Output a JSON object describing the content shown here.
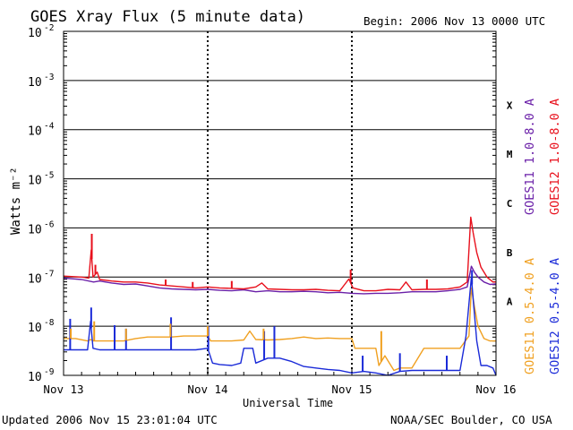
{
  "header": {
    "title": "GOES Xray Flux (5 minute data)",
    "begin": "Begin:  2006 Nov 13 0000 UTC"
  },
  "footer": {
    "updated": "Updated 2006 Nov 15 23:01:04 UTC",
    "credit": "NOAA/SEC Boulder, CO USA"
  },
  "chart_data": {
    "type": "line",
    "title": "GOES Xray Flux (5 minute data)",
    "xlabel": "Universal Time",
    "ylabel": "Watts m⁻²",
    "yscale": "log",
    "ylim": [
      1e-09,
      0.01
    ],
    "xlim": [
      0,
      72
    ],
    "x_units": "hours since 2006 Nov 13 0000 UTC",
    "x_ticks": [
      {
        "x": 0,
        "label": "Nov 13"
      },
      {
        "x": 24,
        "label": "Nov 14"
      },
      {
        "x": 48,
        "label": "Nov 15"
      },
      {
        "x": 72,
        "label": "Nov 16"
      }
    ],
    "y_ticks": [
      {
        "exp": -2,
        "base": "10",
        "power": "-2"
      },
      {
        "exp": -3,
        "base": "10",
        "power": "-3"
      },
      {
        "exp": -4,
        "base": "10",
        "power": "-4"
      },
      {
        "exp": -5,
        "base": "10",
        "power": "-5"
      },
      {
        "exp": -6,
        "base": "10",
        "power": "-6"
      },
      {
        "exp": -7,
        "base": "10",
        "power": "-7"
      },
      {
        "exp": -8,
        "base": "10",
        "power": "-8"
      },
      {
        "exp": -9,
        "base": "10",
        "power": "-9"
      }
    ],
    "flare_classes": [
      {
        "label": "X",
        "center_exp": -3.5
      },
      {
        "label": "M",
        "center_exp": -4.5
      },
      {
        "label": "C",
        "center_exp": -5.5
      },
      {
        "label": "B",
        "center_exp": -6.5
      },
      {
        "label": "A",
        "center_exp": -7.5
      }
    ],
    "grid": true,
    "legend_position": "right (rotated)",
    "series": [
      {
        "name": "GOES11 1.0-8.0 A",
        "color": "#6a1fa8",
        "points": [
          [
            0,
            -7.02
          ],
          [
            3,
            -7.05
          ],
          [
            5,
            -7.1
          ],
          [
            6,
            -7.08
          ],
          [
            8,
            -7.12
          ],
          [
            10,
            -7.15
          ],
          [
            12,
            -7.14
          ],
          [
            14,
            -7.18
          ],
          [
            16,
            -7.22
          ],
          [
            18,
            -7.24
          ],
          [
            20,
            -7.25
          ],
          [
            22,
            -7.26
          ],
          [
            24,
            -7.25
          ],
          [
            26,
            -7.27
          ],
          [
            28,
            -7.28
          ],
          [
            30,
            -7.26
          ],
          [
            32,
            -7.3
          ],
          [
            34,
            -7.28
          ],
          [
            36,
            -7.3
          ],
          [
            38,
            -7.3
          ],
          [
            40,
            -7.29
          ],
          [
            42,
            -7.3
          ],
          [
            44,
            -7.32
          ],
          [
            46,
            -7.31
          ],
          [
            48,
            -7.33
          ],
          [
            50,
            -7.34
          ],
          [
            52,
            -7.33
          ],
          [
            54,
            -7.33
          ],
          [
            56,
            -7.32
          ],
          [
            58,
            -7.3
          ],
          [
            60,
            -7.3
          ],
          [
            62,
            -7.3
          ],
          [
            64,
            -7.28
          ],
          [
            66,
            -7.25
          ],
          [
            67.2,
            -7.2
          ],
          [
            67.9,
            -6.78
          ],
          [
            68.4,
            -6.9
          ],
          [
            69,
            -7.0
          ],
          [
            70,
            -7.1
          ],
          [
            71,
            -7.15
          ],
          [
            72,
            -7.14
          ]
        ]
      },
      {
        "name": "GOES12 1.0-8.0 A",
        "color": "#e8101c",
        "points": [
          [
            0,
            -6.98
          ],
          [
            3,
            -7.0
          ],
          [
            4.2,
            -7.02
          ],
          [
            4.6,
            -6.45
          ],
          [
            4.9,
            -7.0
          ],
          [
            5.6,
            -6.9
          ],
          [
            6,
            -7.05
          ],
          [
            8,
            -7.08
          ],
          [
            10,
            -7.1
          ],
          [
            12,
            -7.1
          ],
          [
            14,
            -7.12
          ],
          [
            16,
            -7.16
          ],
          [
            18,
            -7.18
          ],
          [
            20,
            -7.2
          ],
          [
            22,
            -7.22
          ],
          [
            24,
            -7.2
          ],
          [
            26,
            -7.22
          ],
          [
            28,
            -7.23
          ],
          [
            30,
            -7.24
          ],
          [
            32,
            -7.2
          ],
          [
            33,
            -7.12
          ],
          [
            34,
            -7.24
          ],
          [
            36,
            -7.25
          ],
          [
            38,
            -7.26
          ],
          [
            40,
            -7.26
          ],
          [
            42,
            -7.25
          ],
          [
            44,
            -7.27
          ],
          [
            46,
            -7.28
          ],
          [
            47.5,
            -7.04
          ],
          [
            48.2,
            -7.22
          ],
          [
            50,
            -7.28
          ],
          [
            52,
            -7.28
          ],
          [
            54,
            -7.25
          ],
          [
            56,
            -7.26
          ],
          [
            57,
            -7.1
          ],
          [
            58,
            -7.26
          ],
          [
            60,
            -7.25
          ],
          [
            62,
            -7.25
          ],
          [
            64,
            -7.24
          ],
          [
            66,
            -7.2
          ],
          [
            67.2,
            -7.1
          ],
          [
            67.8,
            -5.78
          ],
          [
            68.2,
            -6.1
          ],
          [
            68.8,
            -6.5
          ],
          [
            69.5,
            -6.8
          ],
          [
            70.5,
            -7.0
          ],
          [
            71.5,
            -7.1
          ],
          [
            72,
            -7.1
          ]
        ]
      },
      {
        "name": "GOES11 0.5-4.0 A",
        "color": "#f0a020",
        "points": [
          [
            0,
            -8.25
          ],
          [
            2,
            -8.25
          ],
          [
            4,
            -8.3
          ],
          [
            4.5,
            -8.27
          ],
          [
            5,
            -8.3
          ],
          [
            8,
            -8.3
          ],
          [
            10,
            -8.3
          ],
          [
            12,
            -8.25
          ],
          [
            14,
            -8.22
          ],
          [
            16,
            -8.22
          ],
          [
            18,
            -8.22
          ],
          [
            20,
            -8.2
          ],
          [
            22,
            -8.2
          ],
          [
            24,
            -8.2
          ],
          [
            24.5,
            -8.3
          ],
          [
            26,
            -8.3
          ],
          [
            28,
            -8.3
          ],
          [
            30,
            -8.28
          ],
          [
            31,
            -8.1
          ],
          [
            32,
            -8.27
          ],
          [
            34,
            -8.28
          ],
          [
            36,
            -8.27
          ],
          [
            38,
            -8.25
          ],
          [
            40,
            -8.22
          ],
          [
            42,
            -8.25
          ],
          [
            44,
            -8.24
          ],
          [
            46,
            -8.25
          ],
          [
            48,
            -8.25
          ],
          [
            48.5,
            -8.45
          ],
          [
            50,
            -8.45
          ],
          [
            52,
            -8.45
          ],
          [
            52.5,
            -8.8
          ],
          [
            53.5,
            -8.6
          ],
          [
            55,
            -8.9
          ],
          [
            56,
            -8.85
          ],
          [
            58,
            -8.85
          ],
          [
            60,
            -8.45
          ],
          [
            62,
            -8.45
          ],
          [
            64,
            -8.45
          ],
          [
            66,
            -8.45
          ],
          [
            67.5,
            -8.2
          ],
          [
            67.9,
            -7.22
          ],
          [
            68.4,
            -7.6
          ],
          [
            69,
            -8.0
          ],
          [
            70,
            -8.25
          ],
          [
            71,
            -8.3
          ],
          [
            72,
            -8.3
          ]
        ]
      },
      {
        "name": "GOES12 0.5-4.0 A",
        "color": "#1a2ad8",
        "points": [
          [
            0,
            -8.48
          ],
          [
            2,
            -8.48
          ],
          [
            4,
            -8.48
          ],
          [
            4.5,
            -7.9
          ],
          [
            4.9,
            -8.45
          ],
          [
            6,
            -8.48
          ],
          [
            8,
            -8.48
          ],
          [
            10,
            -8.48
          ],
          [
            12,
            -8.48
          ],
          [
            14,
            -8.48
          ],
          [
            16,
            -8.48
          ],
          [
            18,
            -8.48
          ],
          [
            20,
            -8.48
          ],
          [
            22,
            -8.48
          ],
          [
            24,
            -8.45
          ],
          [
            24.8,
            -8.75
          ],
          [
            26,
            -8.78
          ],
          [
            28,
            -8.8
          ],
          [
            29.5,
            -8.75
          ],
          [
            30,
            -8.45
          ],
          [
            31.5,
            -8.45
          ],
          [
            32,
            -8.75
          ],
          [
            34,
            -8.65
          ],
          [
            36,
            -8.65
          ],
          [
            38,
            -8.72
          ],
          [
            40,
            -8.82
          ],
          [
            42,
            -8.85
          ],
          [
            44,
            -8.88
          ],
          [
            46,
            -8.9
          ],
          [
            48,
            -8.95
          ],
          [
            50,
            -8.92
          ],
          [
            52,
            -8.95
          ],
          [
            54,
            -9.0
          ],
          [
            56,
            -8.92
          ],
          [
            58,
            -8.9
          ],
          [
            60,
            -8.9
          ],
          [
            62,
            -8.9
          ],
          [
            64,
            -8.9
          ],
          [
            66,
            -8.9
          ],
          [
            67,
            -8.2
          ],
          [
            67.9,
            -7.0
          ],
          [
            68.3,
            -7.6
          ],
          [
            68.8,
            -8.3
          ],
          [
            69.5,
            -8.8
          ],
          [
            70.5,
            -8.8
          ],
          [
            71.5,
            -8.85
          ],
          [
            72,
            -9.0
          ]
        ]
      }
    ],
    "spikes": {
      "GOES12 1.0-8.0 A": [
        [
          4.7,
          -6.12
        ],
        [
          5.3,
          -6.75
        ],
        [
          17,
          -7.05
        ],
        [
          21.5,
          -7.1
        ],
        [
          28,
          -7.08
        ],
        [
          47.8,
          -6.85
        ],
        [
          60.5,
          -7.05
        ]
      ],
      "GOES12 0.5-4.0 A": [
        [
          1.1,
          -7.85
        ],
        [
          4.6,
          -7.62
        ],
        [
          8.5,
          -7.98
        ],
        [
          10.4,
          -8.05
        ],
        [
          17.9,
          -7.82
        ],
        [
          24.1,
          -8.0
        ],
        [
          33.4,
          -8.1
        ],
        [
          35.1,
          -8.0
        ],
        [
          49.8,
          -8.6
        ],
        [
          56.0,
          -8.55
        ],
        [
          63.8,
          -8.6
        ],
        [
          68.0,
          -6.86
        ]
      ],
      "GOES11 0.5-4.0 A": [
        [
          1.2,
          -8.05
        ],
        [
          5.1,
          -7.9
        ],
        [
          10.4,
          -8.05
        ],
        [
          17.8,
          -7.95
        ],
        [
          24.0,
          -8.0
        ],
        [
          33.3,
          -8.05
        ],
        [
          52.9,
          -8.1
        ],
        [
          60.5,
          -8.45
        ]
      ]
    }
  }
}
